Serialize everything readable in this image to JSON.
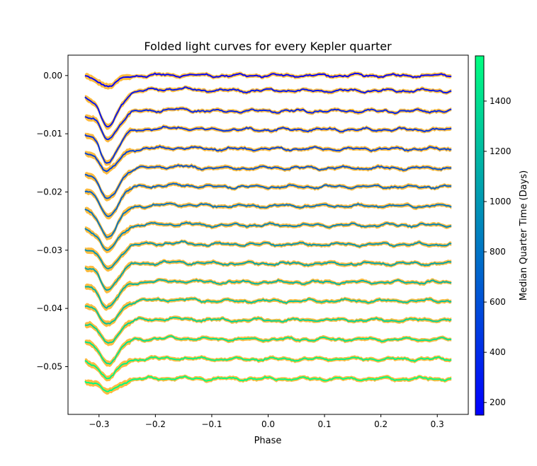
{
  "chart_data": {
    "type": "line",
    "title": "Folded light curves for every Kepler quarter",
    "xlabel": "Phase",
    "ylabel": "",
    "xlim": [
      -0.355,
      0.355
    ],
    "ylim": [
      -0.0582,
      0.0035
    ],
    "x_ticks": [
      -0.3,
      -0.2,
      -0.1,
      0.0,
      0.1,
      0.2,
      0.3
    ],
    "x_tick_labels": [
      "−0.3",
      "−0.2",
      "−0.1",
      "0.0",
      "0.1",
      "0.2",
      "0.3"
    ],
    "y_ticks": [
      0.0,
      -0.01,
      -0.02,
      -0.03,
      -0.04,
      -0.05
    ],
    "y_tick_labels": [
      "0.00",
      "−0.01",
      "−0.02",
      "−0.03",
      "−0.04",
      "−0.05"
    ],
    "grid": false,
    "x_range": [
      -0.325,
      0.325
    ],
    "transit_phase": -0.285,
    "error_band_color": "#ffa500",
    "series": [
      {
        "offset": 0.0,
        "depth": 0.0018,
        "median_time": 170
      },
      {
        "offset": -0.0026,
        "depth": 0.0063,
        "median_time": 260
      },
      {
        "offset": -0.0061,
        "depth": 0.0048,
        "median_time": 350
      },
      {
        "offset": -0.0093,
        "depth": 0.0055,
        "median_time": 440
      },
      {
        "offset": -0.0126,
        "depth": 0.0038,
        "median_time": 530
      },
      {
        "offset": -0.0159,
        "depth": 0.0054,
        "median_time": 620
      },
      {
        "offset": -0.0191,
        "depth": 0.005,
        "median_time": 710
      },
      {
        "offset": -0.0224,
        "depth": 0.0052,
        "median_time": 800
      },
      {
        "offset": -0.0257,
        "depth": 0.0043,
        "median_time": 890
      },
      {
        "offset": -0.029,
        "depth": 0.0042,
        "median_time": 980
      },
      {
        "offset": -0.0323,
        "depth": 0.0043,
        "median_time": 1070
      },
      {
        "offset": -0.0355,
        "depth": 0.0042,
        "median_time": 1160
      },
      {
        "offset": -0.0387,
        "depth": 0.0042,
        "median_time": 1250
      },
      {
        "offset": -0.042,
        "depth": 0.004,
        "median_time": 1340
      },
      {
        "offset": -0.0453,
        "depth": 0.004,
        "median_time": 1430
      },
      {
        "offset": -0.0487,
        "depth": 0.0032,
        "median_time": 1520
      },
      {
        "offset": -0.0521,
        "depth": 0.0022,
        "median_time": 1570
      }
    ],
    "colorbar": {
      "label": "Median Quarter Time (Days)",
      "range": [
        150,
        1580
      ],
      "ticks": [
        200,
        400,
        600,
        800,
        1000,
        1200,
        1400
      ],
      "colormap": "winter",
      "color_low": "#0000ff",
      "color_high": "#00ff80"
    }
  }
}
